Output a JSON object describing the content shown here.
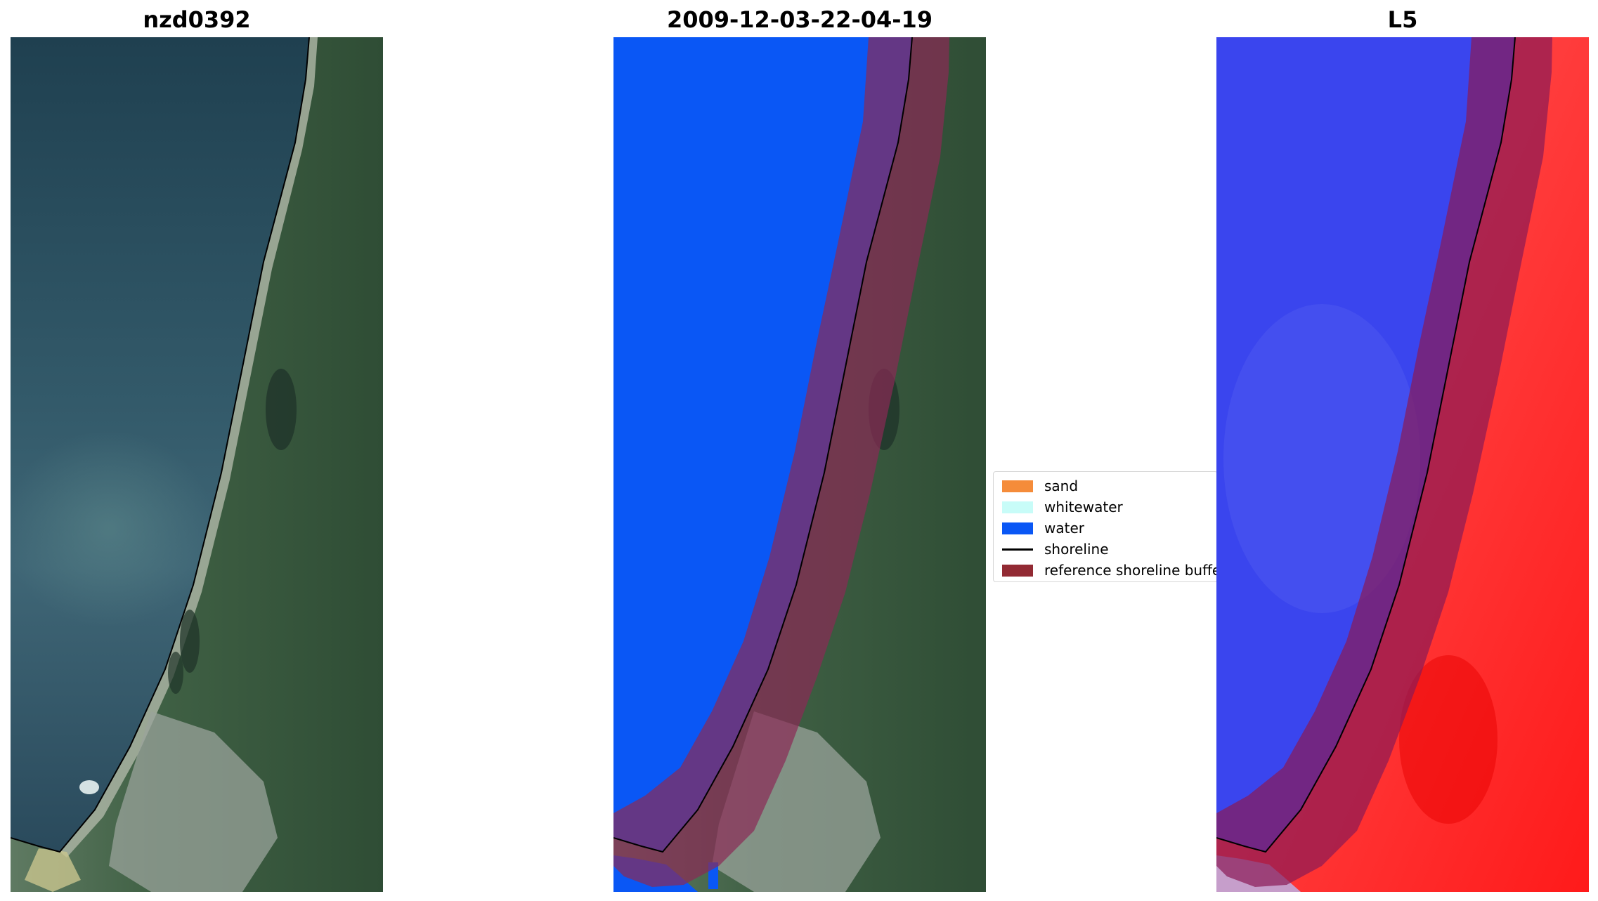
{
  "panels": {
    "left": {
      "title": "nzd0392"
    },
    "middle": {
      "title": "2009-12-03-22-04-19"
    },
    "right": {
      "title": "L5"
    }
  },
  "legend": {
    "items": [
      {
        "label": "sand",
        "color": "#f58c3a",
        "kind": "box"
      },
      {
        "label": "whitewater",
        "color": "#c8fcf8",
        "kind": "box"
      },
      {
        "label": "water",
        "color": "#0a57f5",
        "kind": "box"
      },
      {
        "label": "shoreline",
        "color": "#000000",
        "kind": "line"
      },
      {
        "label": "reference shoreline buffer",
        "color": "#922a33",
        "kind": "box"
      }
    ]
  },
  "colors": {
    "sea": "#2e4f62",
    "land": "#3d5a43",
    "water_class": "#0a57f5",
    "buffer_overlay": "#8a2a55",
    "index_water": "#3344ee",
    "index_land": "#ff2a2a"
  }
}
